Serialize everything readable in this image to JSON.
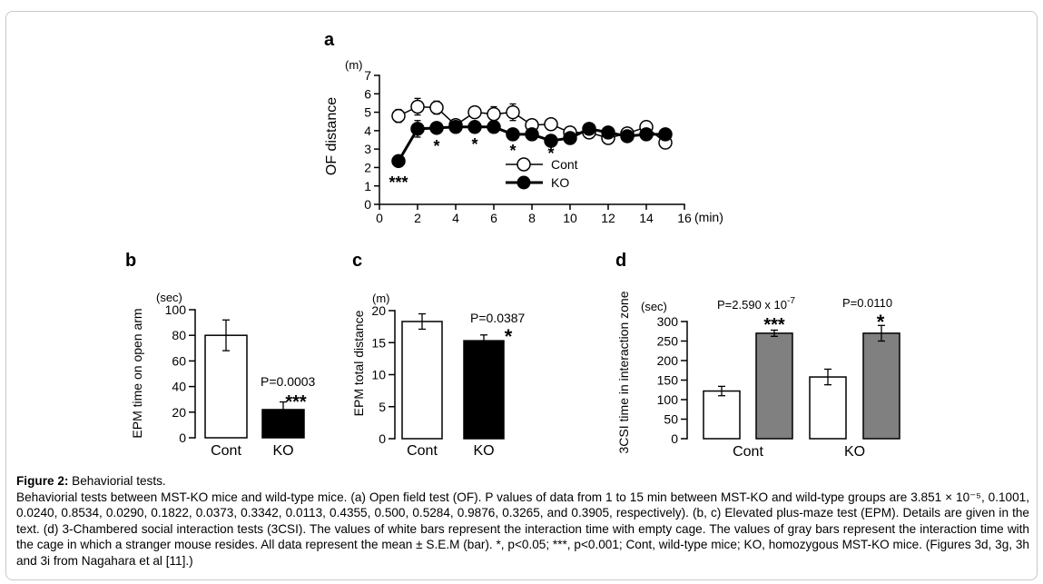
{
  "figure": {
    "panel_a": {
      "letter": "a",
      "unit": "(m)",
      "ylabel": "OF distance",
      "xunit": "(min)",
      "legend": [
        "Cont",
        "KO"
      ],
      "sig": [
        {
          "x": 1,
          "label": "***"
        },
        {
          "x": 3,
          "label": "*"
        },
        {
          "x": 5,
          "label": "*"
        },
        {
          "x": 7,
          "label": "*"
        },
        {
          "x": 9,
          "label": "*"
        }
      ]
    },
    "panel_b": {
      "letter": "b",
      "unit": "(sec)",
      "ylabel": "EPM time on open arm",
      "pvalue": "P=0.0003",
      "sig": "***"
    },
    "panel_c": {
      "letter": "c",
      "unit": "(m)",
      "ylabel": "EPM total distance",
      "pvalue": "P=0.0387",
      "sig": "*"
    },
    "panel_d": {
      "letter": "d",
      "unit": "(sec)",
      "ylabel": "3CSI time in interaction zone",
      "p_cont_main": "P=2.590 x 10",
      "p_cont_exp": "-7",
      "p_ko": "P=0.0110",
      "sig_cont": "***",
      "sig_ko": "*"
    }
  },
  "chart_data": [
    {
      "type": "line",
      "xlim": [
        0,
        16
      ],
      "ylim": [
        0,
        7
      ],
      "xticks": [
        0,
        2,
        4,
        6,
        8,
        10,
        12,
        14,
        16
      ],
      "yticks": [
        0,
        1,
        2,
        3,
        4,
        5,
        6,
        7
      ],
      "x": [
        1,
        2,
        3,
        4,
        5,
        6,
        7,
        8,
        9,
        10,
        11,
        12,
        13,
        14,
        15
      ],
      "series": [
        {
          "name": "Cont",
          "values": [
            4.8,
            5.3,
            5.25,
            4.3,
            5.0,
            4.9,
            5.0,
            4.3,
            4.35,
            3.9,
            3.9,
            3.6,
            3.85,
            4.2,
            3.35
          ],
          "err": [
            0.35,
            0.45,
            0.35,
            0.25,
            0.3,
            0.4,
            0.45,
            0.2,
            0.2,
            0.2,
            0.25,
            0.3,
            0.3,
            0.2,
            0.3
          ]
        },
        {
          "name": "KO",
          "values": [
            2.35,
            4.1,
            4.15,
            4.2,
            4.2,
            4.2,
            3.8,
            3.8,
            3.45,
            3.6,
            4.1,
            3.9,
            3.7,
            3.8,
            3.8
          ],
          "err": [
            0.2,
            0.45,
            0.3,
            0.25,
            0.2,
            0.25,
            0.25,
            0.2,
            0.2,
            0.2,
            0.25,
            0.3,
            0.3,
            0.3,
            0.2
          ]
        }
      ]
    },
    {
      "type": "bar",
      "categories": [
        "Cont",
        "KO"
      ],
      "values": [
        80,
        22
      ],
      "err": [
        12,
        6
      ],
      "ylim": [
        0,
        100
      ],
      "yticks": [
        0,
        20,
        40,
        60,
        80,
        100
      ]
    },
    {
      "type": "bar",
      "categories": [
        "Cont",
        "KO"
      ],
      "values": [
        18.3,
        15.3
      ],
      "err": [
        1.2,
        0.9
      ],
      "ylim": [
        0,
        20
      ],
      "yticks": [
        0,
        5,
        10,
        15,
        20
      ]
    },
    {
      "type": "bar",
      "categories": [
        "Cont",
        "KO"
      ],
      "series": [
        {
          "values": [
            122,
            158
          ],
          "err": [
            12,
            20
          ],
          "color": "#ffffff"
        },
        {
          "values": [
            270,
            270
          ],
          "err": [
            8,
            20
          ],
          "color": "#808080"
        }
      ],
      "ylim": [
        0,
        300
      ],
      "yticks": [
        0,
        50,
        100,
        150,
        200,
        250,
        300
      ]
    }
  ],
  "caption": {
    "title": "Figure 2:",
    "title_rest": " Behaviorial tests.",
    "body": "Behaviorial tests between MST-KO mice and wild-type mice. (a) Open field test (OF). P values of data from 1 to 15 min between MST-KO and wild-type groups are 3.851 × 10⁻⁵, 0.1001, 0.0240, 0.8534, 0.0290, 0.1822, 0.0373, 0.3342, 0.0113, 0.4355, 0.500, 0.5284, 0.9876, 0.3265, and 0.3905, respectively). (b, c) Elevated plus-maze test (EPM). Details are given in the text. (d) 3-Chambered social interaction tests (3CSI). The values of white bars represent the interaction time with empty cage. The values of gray bars represent the interaction time with the cage in which a stranger mouse resides. All data represent the mean ± S.E.M (bar). *, p<0.05; ***, p<0.001; Cont, wild-type mice; KO, homozygous MST-KO mice. (Figures 3d, 3g, 3h and 3i from Nagahara et al [11].)"
  }
}
